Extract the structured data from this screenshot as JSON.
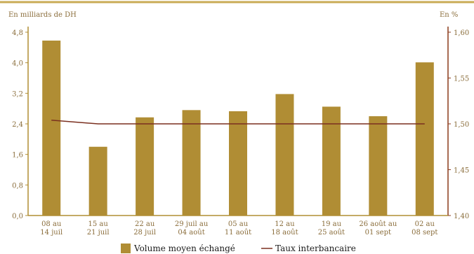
{
  "colors": {
    "bar": "#b08d34",
    "line": "#7a2f1f",
    "axis_left": "#b08d34",
    "axis_right": "#8b3a1a",
    "text": "#8a6d3b",
    "top_rule": "#c9ab55"
  },
  "chart_data": {
    "type": "bar",
    "left_unit": "En milliards de DH",
    "right_unit": "En %",
    "categories": [
      [
        "08 au",
        "14 juil"
      ],
      [
        "15 au",
        "21 juil"
      ],
      [
        "22 au",
        "28 juil"
      ],
      [
        "29 juil au",
        "04 août"
      ],
      [
        "05 au",
        "11 août"
      ],
      [
        "12 au",
        "18 août"
      ],
      [
        "19 au",
        "25 août"
      ],
      [
        "26 août au",
        "01 sept"
      ],
      [
        "02 au",
        "08 sept"
      ]
    ],
    "series": [
      {
        "name": "Volume moyen échangé",
        "kind": "bar",
        "axis": "left",
        "values": [
          4.58,
          1.8,
          2.57,
          2.76,
          2.73,
          3.18,
          2.85,
          2.6,
          4.01
        ]
      },
      {
        "name": "Taux interbancaire",
        "kind": "line",
        "axis": "right",
        "values": [
          1.504,
          1.5,
          1.5,
          1.5,
          1.5,
          1.5,
          1.5,
          1.5,
          1.5
        ]
      }
    ],
    "ylim_left": [
      0,
      4.8
    ],
    "yticks_left": [
      "0,0",
      "0,8",
      "1,6",
      "2,4",
      "3,2",
      "4,0",
      "4,8"
    ],
    "ylim_right": [
      1.4,
      1.6
    ],
    "yticks_right": [
      "1,40",
      "1,45",
      "1,50",
      "1,55",
      "1,60"
    ],
    "grid": false,
    "legend": "bottom"
  }
}
